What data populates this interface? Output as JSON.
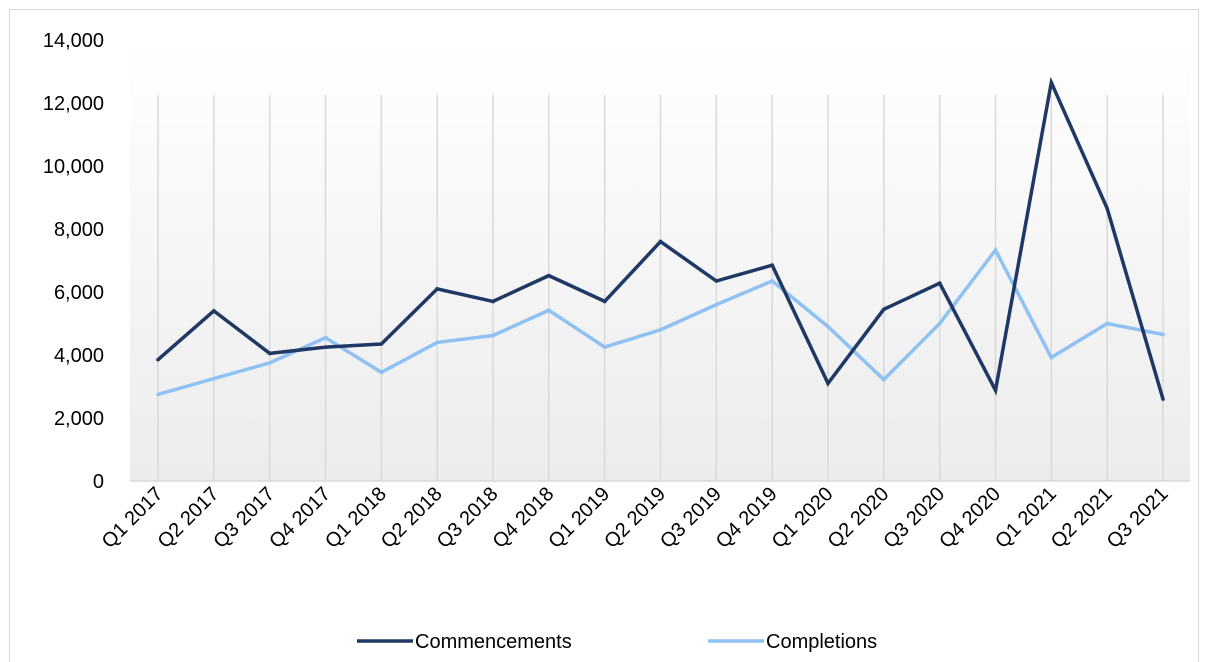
{
  "chart_data": {
    "type": "line",
    "title": "",
    "xlabel": "",
    "ylabel": "",
    "categories": [
      "Q1 2017",
      "Q2 2017",
      "Q3 2017",
      "Q4 2017",
      "Q1 2018",
      "Q2 2018",
      "Q3 2018",
      "Q4 2018",
      "Q1 2019",
      "Q2 2019",
      "Q3 2019",
      "Q4 2019",
      "Q1 2020",
      "Q2 2020",
      "Q3 2020",
      "Q4 2020",
      "Q1 2021",
      "Q2 2021",
      "Q3 2021"
    ],
    "y_ticks": [
      "0",
      "2,000",
      "4,000",
      "6,000",
      "8,000",
      "10,000",
      "12,000",
      "14,000"
    ],
    "ylim": [
      0,
      14000
    ],
    "grid": "vertical",
    "legend_position": "bottom",
    "series": [
      {
        "name": "Commencements",
        "color": "#1f3864",
        "values": [
          3850,
          5400,
          4050,
          4250,
          4350,
          6100,
          5700,
          6520,
          5700,
          7600,
          6350,
          6850,
          3100,
          5450,
          6280,
          2880,
          12650,
          8650,
          2600
        ]
      },
      {
        "name": "Completions",
        "color": "#8fc1f2",
        "values": [
          2750,
          3250,
          3750,
          4550,
          3450,
          4400,
          4620,
          5420,
          4250,
          4800,
          5600,
          6350,
          4900,
          3220,
          5000,
          7330,
          3920,
          5000,
          4650
        ]
      }
    ]
  }
}
